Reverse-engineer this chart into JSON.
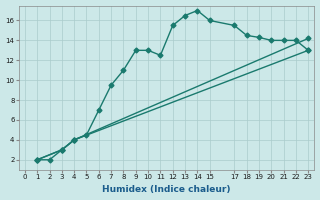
{
  "xlabel": "Humidex (Indice chaleur)",
  "ylabel": "",
  "bg_color": "#cce8e8",
  "grid_color": "#aacccc",
  "line_color": "#1a7a6e",
  "xlim": [
    -0.5,
    23.5
  ],
  "ylim": [
    1,
    17.5
  ],
  "xticks": [
    0,
    1,
    2,
    3,
    4,
    5,
    6,
    7,
    8,
    9,
    10,
    11,
    12,
    13,
    14,
    15,
    17,
    18,
    19,
    20,
    21,
    22,
    23
  ],
  "yticks": [
    2,
    4,
    6,
    8,
    10,
    12,
    14,
    16
  ],
  "line1_x": [
    1,
    2,
    3,
    4,
    5,
    6,
    7,
    8,
    9,
    10,
    11,
    12,
    13,
    14,
    15,
    17,
    18,
    19,
    20,
    21,
    22,
    23
  ],
  "line1_y": [
    2,
    2,
    3,
    4,
    4.5,
    7,
    9.5,
    11,
    13,
    13,
    12.5,
    15.5,
    16.5,
    17,
    16,
    15.5,
    14.5,
    14.3,
    14,
    14,
    14,
    13
  ],
  "line2_x": [
    1,
    3,
    4,
    23
  ],
  "line2_y": [
    2,
    3,
    4,
    13
  ],
  "line3_x": [
    1,
    3,
    4,
    23
  ],
  "line3_y": [
    2,
    3,
    4,
    14.2
  ],
  "marker": "D",
  "markersize": 2.5,
  "linewidth": 1.0,
  "xlabel_color": "#1a5c8c",
  "tick_labelsize": 5,
  "xlabel_fontsize": 6.5,
  "xlabel_fontweight": "bold"
}
